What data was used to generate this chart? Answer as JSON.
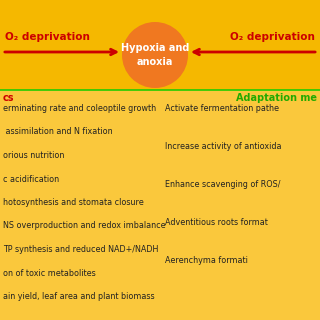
{
  "bg_color": "#FAC83C",
  "top_bg_color": "#F5B800",
  "circle_color": "#F07820",
  "circle_text": "Hypoxia and\nanoxia",
  "circle_text_color": "white",
  "arrow_color": "#CC0000",
  "green_line_color": "#22CC00",
  "left_label": "O₂ deprivation",
  "right_label": "O₂ deprivation",
  "left_section_title": "cs",
  "right_section_title": "Adaptation me",
  "left_items": [
    "erminating rate and coleoptile growth",
    " assimilation and N fixation",
    "orious nutrition",
    "c acidification",
    "hotosynthesis and stomata closure",
    "NS overproduction and redox imbalance",
    "TP synthesis and reduced NAD+/NADH",
    "on of toxic metabolites",
    "ain yield, leaf area and plant biomass"
  ],
  "right_items": [
    "Activate fermentation pathe",
    "Increase activity of antioxida",
    "Enhance scavenging of ROS/",
    "Adventitious roots format",
    "Aerenchyma formati"
  ],
  "label_color": "#CC0000",
  "section_title_color_left": "#CC0000",
  "section_title_color_right": "#22AA00",
  "item_color": "#222222",
  "fontsize_label": 7.5,
  "fontsize_circle": 7,
  "fontsize_section": 7,
  "fontsize_items": 5.8
}
